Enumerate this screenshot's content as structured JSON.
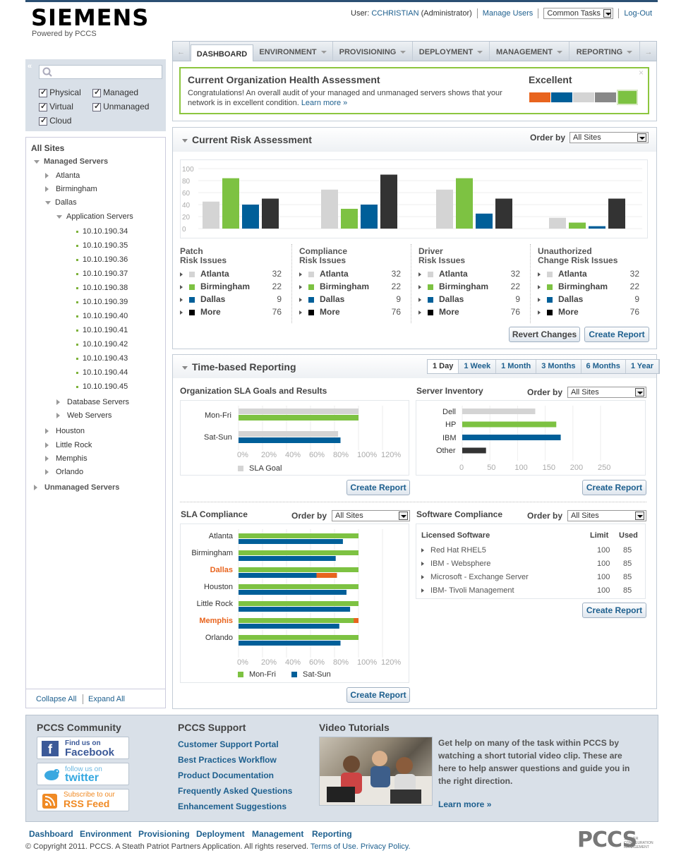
{
  "brand": {
    "logo": "SIEMENS",
    "powered": "Powered by PCCS"
  },
  "usernav": {
    "user_prefix": "User:",
    "user_name": "CCHRISTIAN",
    "user_role": "(Administrator)",
    "manage_users": "Manage Users",
    "common_tasks": "Common Tasks",
    "logout": "Log-Out"
  },
  "tabs": [
    "DASHBOARD",
    "ENVIRONMENT",
    "PROVISIONING",
    "DEPLOYMENT",
    "MANAGEMENT",
    "REPORTING"
  ],
  "filters": {
    "search_placeholder": "",
    "checkboxes": [
      "Physical",
      "Managed",
      "Virtual",
      "Unmanaged",
      "Cloud"
    ]
  },
  "tree": {
    "root": "All Sites",
    "managed": "Managed Servers",
    "sites_before": [
      "Atlanta",
      "Birmingham"
    ],
    "dallas": "Dallas",
    "app_servers": "Application Servers",
    "ips": [
      "10.10.190.34",
      "10.10.190.35",
      "10.10.190.36",
      "10.10.190.37",
      "10.10.190.38",
      "10.10.190.39",
      "10.10.190.40",
      "10.10.190.41",
      "10.10.190.42",
      "10.10.190.43",
      "10.10.190.44",
      "10.10.190.45"
    ],
    "db_servers": "Database Servers",
    "web_servers": "Web Servers",
    "sites_after": [
      "Houston",
      "Little Rock",
      "Memphis",
      "Orlando"
    ],
    "unmanaged": "Unmanaged Servers",
    "collapse_all": "Collapse All",
    "expand_all": "Expand All"
  },
  "health": {
    "title": "Current Organization Health Assessment",
    "text1": "Congratulations! An overall audit of your managed and unmanaged servers shows that your",
    "text2": "network is in excellent condition.",
    "learn_more": "Learn more »",
    "rating": "Excellent",
    "close": "×",
    "meter_colors": [
      "#e8641e",
      "#005f99",
      "#d4d4d4",
      "#888888",
      "#7dc242"
    ]
  },
  "risk": {
    "title": "Current Risk Assessment",
    "order_by": "Order by",
    "order_value": "All Sites",
    "yticks": [
      "100",
      "80",
      "60",
      "40",
      "20",
      "0"
    ],
    "groups": [
      {
        "line1": "Patch",
        "line2": "Risk Issues"
      },
      {
        "line1": "Compliance",
        "line2": "Risk Issues"
      },
      {
        "line1": "Driver",
        "line2": "Risk Issues"
      },
      {
        "line1": "Unauthorized",
        "line2": "Change Risk Issues"
      }
    ],
    "legend": [
      {
        "name": "Atlanta",
        "value": "32",
        "color": "#d4d4d4"
      },
      {
        "name": "Birmingham",
        "value": "22",
        "color": "#7dc242"
      },
      {
        "name": "Dallas",
        "value": "9",
        "color": "#005f99"
      },
      {
        "name": "More",
        "value": "76",
        "color": "#000000"
      }
    ],
    "revert": "Revert Changes",
    "create": "Create Report"
  },
  "chart_data": [
    {
      "type": "bar",
      "title": "Current Risk Assessment",
      "categories": [
        "Patch Risk Issues",
        "Compliance Risk Issues",
        "Driver Risk Issues",
        "Unauthorized Change Risk Issues"
      ],
      "ylim": [
        0,
        100
      ],
      "series": [
        {
          "name": "Atlanta",
          "values": [
            45,
            65,
            65,
            18
          ]
        },
        {
          "name": "Birmingham",
          "values": [
            84,
            33,
            84,
            10
          ]
        },
        {
          "name": "Dallas",
          "values": [
            40,
            40,
            25,
            4
          ]
        },
        {
          "name": "More",
          "values": [
            50,
            90,
            50,
            50
          ]
        }
      ]
    },
    {
      "type": "bar",
      "title": "Organization SLA Goals and Results",
      "categories": [
        "Mon-Fri",
        "Sat-Sun"
      ],
      "xticks": [
        "0%",
        "20%",
        "40%",
        "60%",
        "80%",
        "100%",
        "120%"
      ],
      "series": [
        {
          "name": "SLA Goal",
          "values": [
            100,
            83
          ]
        },
        {
          "values": [
            100,
            85
          ]
        }
      ]
    },
    {
      "type": "bar",
      "title": "Server Inventory",
      "categories": [
        "Dell",
        "HP",
        "IBM",
        "Other"
      ],
      "values": [
        132,
        170,
        178,
        43
      ],
      "xticks": [
        "0",
        "50",
        "100",
        "150",
        "200",
        "250"
      ],
      "xlim": [
        0,
        250
      ]
    },
    {
      "type": "bar",
      "title": "SLA Compliance",
      "categories": [
        "Atlanta",
        "Birmingham",
        "Dallas",
        "Houston",
        "Little Rock",
        "Memphis",
        "Orlando"
      ],
      "xticks": [
        "0%",
        "20%",
        "40%",
        "60%",
        "80%",
        "100%",
        "120%"
      ],
      "series": [
        {
          "name": "Mon-Fri",
          "values": [
            100,
            100,
            100,
            100,
            100,
            100,
            100
          ]
        },
        {
          "name": "Sat-Sun",
          "values": [
            87,
            81,
            82,
            90,
            93,
            84,
            85
          ]
        }
      ]
    }
  ],
  "time": {
    "title": "Time-based Reporting",
    "ranges": [
      "1 Day",
      "1 Week",
      "1 Month",
      "3 Months",
      "6 Months",
      "1 Year"
    ],
    "org_sla": {
      "title": "Organization SLA Goals and Results",
      "categories": [
        "Mon-Fri",
        "Sat-Sun"
      ],
      "legend": "SLA Goal"
    },
    "inventory": {
      "title": "Server Inventory",
      "order_by": "Order by",
      "order_value": "All Sites",
      "categories": [
        "Dell",
        "HP",
        "IBM",
        "Other"
      ]
    },
    "sla": {
      "title": "SLA Compliance",
      "order_by": "Order by",
      "order_value": "All Sites",
      "legend1": "Mon-Fri",
      "legend2": "Sat-Sun",
      "highlight": [
        "Dallas",
        "Memphis"
      ]
    },
    "software": {
      "title": "Software Compliance",
      "order_by": "Order by",
      "order_value": "All Sites",
      "h_name": "Licensed Software",
      "h_limit": "Limit",
      "h_used": "Used",
      "rows": [
        {
          "name": "Red Hat RHEL5",
          "limit": "100",
          "used": "85"
        },
        {
          "name": "IBM - Websphere",
          "limit": "100",
          "used": "85"
        },
        {
          "name": "Microsoft - Exchange Server",
          "limit": "100",
          "used": "85"
        },
        {
          "name": "IBM- Tivoli Management",
          "limit": "100",
          "used": "85"
        }
      ]
    },
    "create": "Create Report"
  },
  "community": {
    "title": "PCCS Community",
    "facebook_small": "Find us on",
    "facebook": "Facebook",
    "twitter_small": "follow us on",
    "twitter": "twitter",
    "rss_small": "Subscribe to our",
    "rss": "RSS Feed"
  },
  "support": {
    "title": "PCCS Support",
    "links": [
      "Customer Support Portal",
      "Best Practices Workflow",
      "Product Documentation",
      "Frequently Asked Questions",
      "Enhancement Suggestions"
    ]
  },
  "video": {
    "title": "Video Tutorials",
    "text": "Get help on many of the task within PCCS by watching a short tutorial video clip. These are here to help answer questions and guide you in the right direction.",
    "learn_more": "Learn more »"
  },
  "footer": {
    "nav": [
      "Dashboard",
      "Environment",
      "Provisioning",
      "Deployment",
      "Management",
      "Reporting"
    ],
    "copyright": "© Copyright 2011. PCCS. A Steath Patriot Partners Application. All rights reserved.",
    "terms": "Terms of Use.",
    "privacy": "Privacy Policy.",
    "logo": "PCCS",
    "logo_sub1": "SERVER",
    "logo_sub2": "CONFIGURATION",
    "logo_sub3": "MANAGEMENT"
  }
}
